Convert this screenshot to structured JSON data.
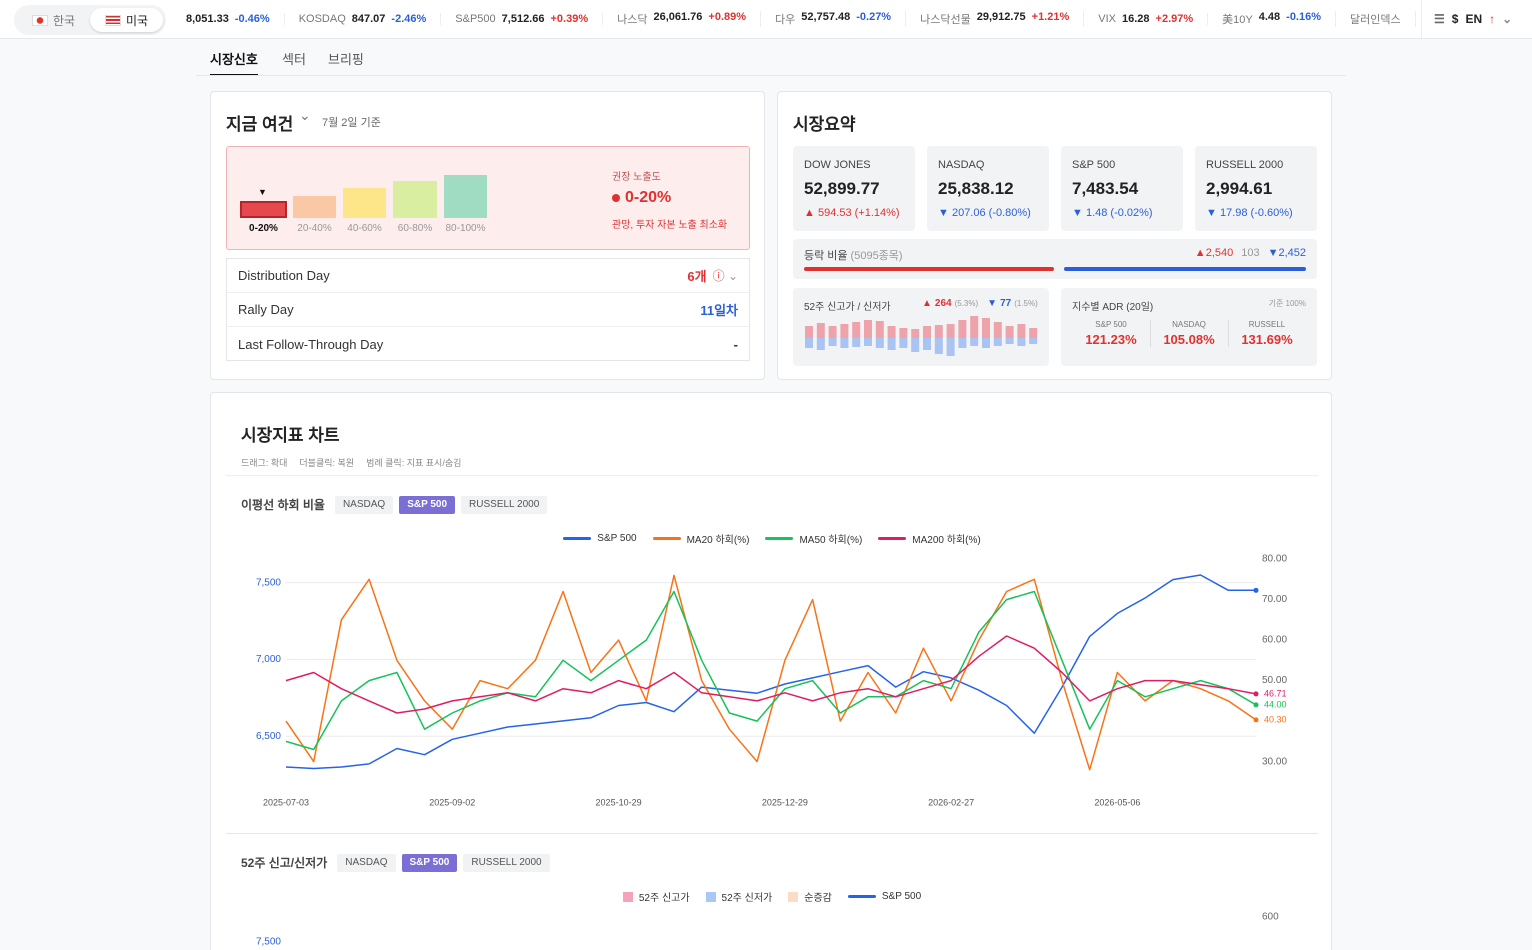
{
  "top_bar": {
    "countries": [
      "한국",
      "미국"
    ],
    "ticker": [
      {
        "value": "8,051.33",
        "change": "-0.46%"
      },
      {
        "name": "KOSDAQ",
        "value": "847.07",
        "change": "-2.46%"
      },
      {
        "name": "S&P500",
        "value": "7,512.66",
        "change": "+0.39%"
      },
      {
        "name": "나스닥",
        "value": "26,061.76",
        "change": "+0.89%"
      },
      {
        "name": "다우",
        "value": "52,757.48",
        "change": "-0.27%"
      },
      {
        "name": "나스닥선물",
        "value": "29,912.75",
        "change": "+1.21%"
      },
      {
        "name": "VIX",
        "value": "16.28",
        "change": "+2.97%"
      },
      {
        "name": "美10Y",
        "value": "4.48",
        "change": "-0.16%"
      },
      {
        "name": "달러인덱스"
      }
    ],
    "currency": "$",
    "language": "EN"
  },
  "tabs": [
    "시장신호",
    "섹터",
    "브리핑"
  ],
  "condition": {
    "title": "지금 여건",
    "date": "7월 2일 기준",
    "levels": [
      "0-20%",
      "20-40%",
      "40-60%",
      "60-80%",
      "80-100%"
    ],
    "recommend_label": "권장 노출도",
    "recommend_value": "0-20%",
    "recommend_desc": "관망, 투자 자본 노출 최소화",
    "rows": [
      {
        "label": "Distribution Day",
        "value": "6개"
      },
      {
        "label": "Rally Day",
        "value": "11일차"
      },
      {
        "label": "Last Follow-Through Day",
        "value": "-"
      }
    ]
  },
  "summary": {
    "title": "시장요약",
    "indices": [
      {
        "name": "DOW JONES",
        "value": "52,899.77",
        "change": "594.53 (+1.14%)"
      },
      {
        "name": "NASDAQ",
        "value": "25,838.12",
        "change": "207.06 (-0.80%)"
      },
      {
        "name": "S&P 500",
        "value": "7,483.54",
        "change": "1.48 (-0.02%)"
      },
      {
        "name": "RUSSELL 2000",
        "value": "2,994.61",
        "change": "17.98 (-0.60%)"
      }
    ],
    "breadth": {
      "label": "등락 비율",
      "count": "(5095종목)",
      "up": {
        "value": 2540,
        "label": "2,540"
      },
      "flat": 103,
      "down": {
        "value": 2452,
        "label": "2,452"
      }
    },
    "highs_lows": {
      "label": "52주 신고가 / 신저가",
      "highs": "264",
      "highs_pct": "(5.3%)",
      "lows": "77",
      "lows_pct": "(1.5%)",
      "bars_high": [
        12,
        15,
        12,
        14,
        16,
        18,
        17,
        12,
        10,
        9,
        12,
        13,
        14,
        18,
        22,
        20,
        16,
        12,
        14,
        10
      ],
      "bars_low": [
        10,
        12,
        8,
        10,
        9,
        8,
        10,
        12,
        10,
        14,
        12,
        16,
        18,
        10,
        8,
        10,
        8,
        6,
        8,
        6
      ]
    },
    "adr": {
      "title": "지수별 ADR (20일)",
      "base": "기준 100%",
      "items": [
        {
          "name": "S&P 500",
          "value": "121.23%"
        },
        {
          "name": "NASDAQ",
          "value": "105.08%"
        },
        {
          "name": "RUSSELL",
          "value": "131.69%"
        }
      ]
    }
  },
  "chart_section": {
    "title": "시장지표 차트",
    "hints": [
      "드래그: 확대",
      "더블클릭: 복원",
      "범례 클릭: 지표 표시/숨김"
    ]
  },
  "chart_data": [
    {
      "type": "line",
      "label": "이평선 하회 비율",
      "buttons": [
        "NASDAQ",
        "S&P 500",
        "RUSSELL 2000"
      ],
      "selected": 1,
      "categories": [
        "2025-07-03",
        null,
        null,
        null,
        null,
        null,
        "2025-09-02",
        null,
        null,
        null,
        null,
        null,
        "2025-10-29",
        null,
        null,
        null,
        null,
        null,
        "2025-12-29",
        null,
        null,
        null,
        null,
        null,
        "2026-02-27",
        null,
        null,
        null,
        null,
        null,
        "2026-05-06",
        null,
        null,
        null,
        null,
        null
      ],
      "series": [
        {
          "name": "S&P 500",
          "color": "#2563eb",
          "values": [
            6300,
            6290,
            6300,
            6320,
            6420,
            6380,
            6480,
            6520,
            6560,
            6580,
            6600,
            6620,
            6700,
            6720,
            6660,
            6820,
            6800,
            6780,
            6840,
            6880,
            6920,
            6960,
            6820,
            6920,
            6880,
            6800,
            6700,
            6520,
            6820,
            7150,
            7300,
            7400,
            7520,
            7550,
            7450,
            7450
          ]
        },
        {
          "name": "MA20 하회(%)",
          "color": "#f97316",
          "axis": "y2",
          "values": [
            40,
            30,
            65,
            75,
            55,
            45,
            38,
            50,
            48,
            55,
            72,
            52,
            60,
            45,
            76,
            50,
            38,
            30,
            55,
            70,
            40,
            52,
            42,
            58,
            45,
            60,
            72,
            75,
            50,
            28,
            52,
            45,
            50,
            48,
            45,
            40.3
          ],
          "value_labels": [
            null,
            null,
            null,
            null,
            null,
            null,
            null,
            null,
            null,
            null,
            null,
            null,
            null,
            null,
            null,
            null,
            null,
            null,
            null,
            null,
            null,
            null,
            null,
            null,
            null,
            null,
            null,
            null,
            null,
            null,
            null,
            null,
            null,
            null,
            null,
            "40.30"
          ]
        },
        {
          "name": "MA50 하회(%)",
          "color": "#16c25a",
          "axis": "y2",
          "values": [
            35,
            33,
            45,
            50,
            52,
            38,
            42,
            45,
            47,
            46,
            55,
            50,
            55,
            60,
            72,
            55,
            42,
            40,
            48,
            50,
            42,
            46,
            46,
            50,
            48,
            62,
            70,
            72,
            55,
            38,
            50,
            46,
            48,
            50,
            48,
            44
          ],
          "value_labels": [
            null,
            null,
            null,
            null,
            null,
            null,
            null,
            null,
            null,
            null,
            null,
            null,
            null,
            null,
            null,
            null,
            null,
            null,
            null,
            null,
            null,
            null,
            null,
            null,
            null,
            null,
            null,
            null,
            null,
            null,
            null,
            null,
            null,
            null,
            null,
            "44.00"
          ]
        },
        {
          "name": "MA200 하회(%)",
          "color": "#e11d62",
          "axis": "y2",
          "values": [
            50,
            52,
            48,
            45,
            42,
            43,
            45,
            46,
            47,
            45,
            48,
            47,
            50,
            48,
            52,
            47,
            46,
            45,
            47,
            45,
            47,
            48,
            46,
            48,
            50,
            56,
            61,
            58,
            52,
            45,
            48,
            50,
            50,
            49,
            48,
            46.71
          ],
          "value_labels": [
            null,
            null,
            null,
            null,
            null,
            null,
            null,
            null,
            null,
            null,
            null,
            null,
            null,
            null,
            null,
            null,
            null,
            null,
            null,
            null,
            null,
            null,
            null,
            null,
            null,
            null,
            null,
            null,
            null,
            null,
            null,
            null,
            null,
            null,
            null,
            "46.71"
          ]
        }
      ],
      "ylim": [
        6150,
        7680
      ],
      "yticks": [
        {
          "value": 6500,
          "label": "6,500"
        },
        {
          "value": 7000,
          "label": "7,000"
        },
        {
          "value": 7500,
          "label": "7,500"
        }
      ],
      "y2lim": [
        23,
        81
      ],
      "y2ticks": [
        {
          "value": 30,
          "label": "30.00"
        },
        {
          "value": 50,
          "label": "50.00"
        },
        {
          "value": 60,
          "label": "60.00"
        },
        {
          "value": 70,
          "label": "70.00"
        },
        {
          "value": 80,
          "label": "80.00"
        }
      ],
      "grid": true
    },
    {
      "type": "bar",
      "label": "52주 신고/신저가",
      "buttons": [
        "NASDAQ",
        "S&P 500",
        "RUSSELL 2000"
      ],
      "selected": 1,
      "series": [
        {
          "name": "52주 신고가",
          "color": "#f4a3b8"
        },
        {
          "name": "52주 신저가",
          "color": "#a9c8f5"
        },
        {
          "name": "순증감",
          "color": "#fcdcc4"
        },
        {
          "name": "S&P 500",
          "color": "#2563eb",
          "type": "line"
        }
      ],
      "ylim": [
        6150,
        7680
      ],
      "yticks": [
        {
          "value": 7500,
          "label": "7,500"
        }
      ],
      "y2lim": [
        0,
        610
      ],
      "y2ticks": [
        600
      ]
    }
  ]
}
